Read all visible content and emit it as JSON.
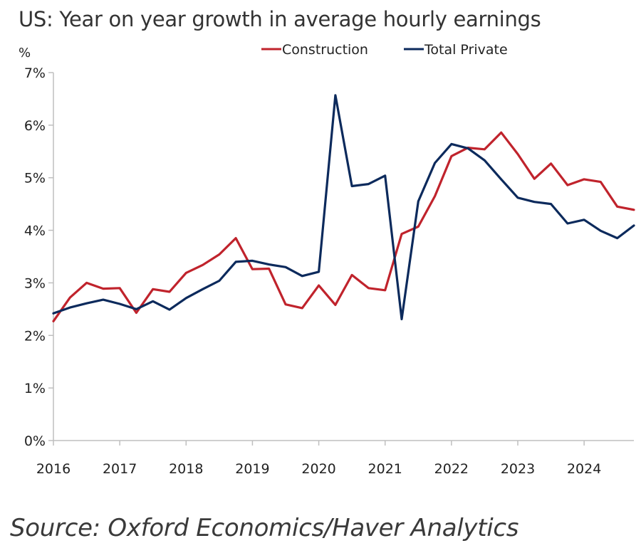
{
  "chart_data": {
    "type": "line",
    "title": "US: Year on year growth in average hourly earnings",
    "ylabel": "%",
    "xlabel": "",
    "ylim": [
      0,
      7
    ],
    "xlim": [
      2016,
      2024.75
    ],
    "yticks": [
      0,
      1,
      2,
      3,
      4,
      5,
      6,
      7
    ],
    "ytick_labels": [
      "0%",
      "1%",
      "2%",
      "3%",
      "4%",
      "5%",
      "6%",
      "7%"
    ],
    "xticks": [
      2016,
      2017,
      2018,
      2019,
      2020,
      2021,
      2022,
      2023,
      2024
    ],
    "xtick_labels": [
      "2016",
      "2017",
      "2018",
      "2019",
      "2020",
      "2021",
      "2022",
      "2023",
      "2024"
    ],
    "grid": false,
    "legend_position": "top-right",
    "x": [
      2016.0,
      2016.25,
      2016.5,
      2016.75,
      2017.0,
      2017.25,
      2017.5,
      2017.75,
      2018.0,
      2018.25,
      2018.5,
      2018.75,
      2019.0,
      2019.25,
      2019.5,
      2019.75,
      2020.0,
      2020.25,
      2020.5,
      2020.75,
      2021.0,
      2021.25,
      2021.5,
      2021.75,
      2022.0,
      2022.25,
      2022.5,
      2022.75,
      2023.0,
      2023.25,
      2023.5,
      2023.75,
      2024.0,
      2024.25,
      2024.5,
      2024.75
    ],
    "series": [
      {
        "name": "Construction",
        "color": "#c0232c",
        "values": [
          2.27,
          2.72,
          3.0,
          2.89,
          2.9,
          2.43,
          2.88,
          2.83,
          3.19,
          3.34,
          3.54,
          3.85,
          3.26,
          3.27,
          2.59,
          2.52,
          2.95,
          2.58,
          3.15,
          2.9,
          2.86,
          3.93,
          4.07,
          4.65,
          5.41,
          5.57,
          5.54,
          5.86,
          5.45,
          4.98,
          5.27,
          4.86,
          4.97,
          4.92,
          4.45,
          4.39
        ]
      },
      {
        "name": "Total Private",
        "color": "#0c2a5c",
        "values": [
          2.42,
          2.53,
          2.61,
          2.68,
          2.6,
          2.5,
          2.65,
          2.49,
          2.71,
          2.88,
          3.04,
          3.4,
          3.42,
          3.35,
          3.3,
          3.13,
          3.21,
          6.57,
          4.84,
          4.88,
          5.04,
          2.31,
          4.55,
          5.28,
          5.64,
          5.56,
          5.33,
          4.97,
          4.62,
          4.54,
          4.5,
          4.13,
          4.2,
          3.99,
          3.85,
          4.09
        ]
      }
    ]
  },
  "source": "Source: Oxford Economics/Haver Analytics"
}
